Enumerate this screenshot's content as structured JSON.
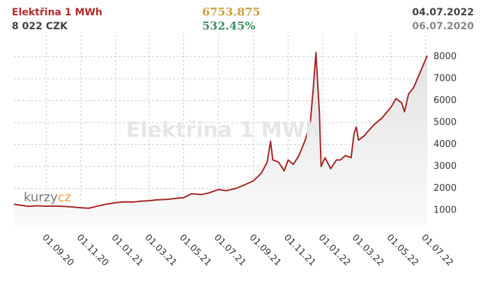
{
  "header": {
    "name": "Elektřina 1 MWh",
    "price": "8 022 CZK",
    "index_value": "6753.875",
    "change": "532.45%",
    "date_to": "04.07.2022",
    "date_from": "06.07.2020",
    "logo_left": "kurzy",
    "logo_right": "cz"
  },
  "chart_data": {
    "type": "line",
    "title": "Elektřina 1 MWh",
    "color": "#a52424",
    "grid": true,
    "x": [
      "06.07.20",
      "20.07.20",
      "01.08.20",
      "15.08.20",
      "01.09.20",
      "15.09.20",
      "01.10.20",
      "15.10.20",
      "01.11.20",
      "15.11.20",
      "01.12.20",
      "15.12.20",
      "01.01.21",
      "15.01.21",
      "01.02.21",
      "15.02.21",
      "01.03.21",
      "15.03.21",
      "01.04.21",
      "15.04.21",
      "01.05.21",
      "15.05.21",
      "01.06.21",
      "15.06.21",
      "01.07.21",
      "15.07.21",
      "01.08.21",
      "15.08.21",
      "01.09.21",
      "15.09.21",
      "25.09.21",
      "01.10.21",
      "05.10.21",
      "15.10.21",
      "25.10.21",
      "01.11.21",
      "10.11.21",
      "20.11.21",
      "01.12.21",
      "10.12.21",
      "15.12.21",
      "20.12.21",
      "23.12.21",
      "26.12.21",
      "29.12.21",
      "05.01.22",
      "15.01.22",
      "25.01.22",
      "01.02.22",
      "10.02.22",
      "20.02.22",
      "25.02.22",
      "01.03.22",
      "05.03.22",
      "15.03.22",
      "25.03.22",
      "01.04.22",
      "15.04.22",
      "01.05.22",
      "10.05.22",
      "20.05.22",
      "25.05.22",
      "01.06.22",
      "10.06.22",
      "20.06.22",
      "04.07.22"
    ],
    "values": [
      1280,
      1230,
      1180,
      1210,
      1190,
      1200,
      1180,
      1160,
      1120,
      1100,
      1200,
      1280,
      1350,
      1390,
      1380,
      1420,
      1440,
      1480,
      1500,
      1540,
      1580,
      1760,
      1720,
      1800,
      1950,
      1900,
      2000,
      2150,
      2350,
      2700,
      3200,
      4150,
      3300,
      3200,
      2800,
      3300,
      3100,
      3500,
      4200,
      5000,
      6500,
      8200,
      6800,
      5500,
      3000,
      3400,
      2900,
      3300,
      3300,
      3500,
      3400,
      4500,
      4800,
      4200,
      4400,
      4700,
      4900,
      5200,
      5700,
      6100,
      5900,
      5500,
      6300,
      6600,
      7200,
      8050
    ],
    "xlim": [
      "06.07.20",
      "04.07.22"
    ],
    "xticks": [
      "01.09.20",
      "01.11.20",
      "01.01.21",
      "01.03.21",
      "01.05.21",
      "01.07.21",
      "01.09.21",
      "01.11.21",
      "01.01.22",
      "01.03.22",
      "01.05.22",
      "01.07.22"
    ],
    "ylim": [
      270,
      9000
    ],
    "yticks": [
      1000,
      2000,
      3000,
      4000,
      5000,
      6000,
      7000,
      8000
    ]
  }
}
